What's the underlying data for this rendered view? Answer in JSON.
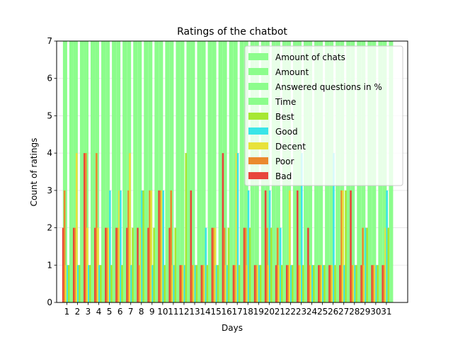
{
  "chart_data": {
    "type": "bar",
    "title": "Ratings of the chatbot",
    "xlabel": "Days",
    "ylabel": "Count of ratings",
    "ylim": [
      0,
      7
    ],
    "y_ticks": [
      0,
      1,
      2,
      3,
      4,
      5,
      6,
      7
    ],
    "grid": true,
    "legend_position": "top-right",
    "categories": [
      "1",
      "2",
      "3",
      "4",
      "5",
      "6",
      "7",
      "8",
      "9",
      "10",
      "11",
      "12",
      "13",
      "14",
      "15",
      "16",
      "17",
      "18",
      "19",
      "20",
      "21",
      "22",
      "23",
      "24",
      "25",
      "26",
      "27",
      "28",
      "29",
      "30",
      "31"
    ],
    "series": [
      {
        "name": "Bad",
        "color": "#e8453c",
        "values": [
          2,
          2,
          4,
          2,
          2,
          2,
          2,
          2,
          2,
          3,
          2,
          1,
          3,
          1,
          2,
          4,
          1,
          2,
          1,
          3,
          1,
          1,
          3,
          2,
          1,
          1,
          1,
          3,
          1,
          1,
          1
        ]
      },
      {
        "name": "Poor",
        "color": "#ea8a2e",
        "values": [
          3,
          2,
          4,
          4,
          2,
          2,
          3,
          1,
          3,
          3,
          3,
          1,
          1,
          1,
          2,
          2,
          1,
          2,
          1,
          2,
          2,
          1,
          1,
          1,
          1,
          1,
          3,
          1,
          2,
          1,
          1
        ]
      },
      {
        "name": "Decent",
        "color": "#e8e23a",
        "values": [
          1,
          4,
          2,
          2,
          2,
          3,
          4,
          2,
          3,
          3,
          1,
          1,
          1,
          1,
          2,
          1,
          4,
          1,
          1,
          1,
          1,
          3,
          1,
          1,
          1,
          1,
          3,
          1,
          1,
          1,
          2
        ]
      },
      {
        "name": "Good",
        "color": "#3ae5e8",
        "values": [
          1,
          1,
          1,
          1,
          3,
          3,
          1,
          3,
          1,
          3,
          1,
          1,
          1,
          2,
          1,
          1,
          4,
          3,
          1,
          3,
          2,
          1,
          4,
          1,
          1,
          4,
          1,
          1,
          2,
          1,
          3
        ]
      },
      {
        "name": "Best",
        "color": "#a6e832",
        "values": [
          1,
          1,
          1,
          1,
          1,
          1,
          2,
          3,
          2,
          1,
          2,
          4,
          1,
          1,
          1,
          2,
          1,
          2,
          1,
          2,
          1,
          1,
          1,
          1,
          1,
          1,
          3,
          1,
          2,
          1,
          2
        ]
      }
    ],
    "background_series": [
      {
        "name": "Amount of chats",
        "color": "#8cfd8c"
      },
      {
        "name": "Amount",
        "color": "#8cfd8c"
      },
      {
        "name": "Answered questions in %",
        "color": "#8cfd8c"
      },
      {
        "name": "Time",
        "color": "#8cfd8c"
      }
    ],
    "legend_order": [
      "Amount of chats",
      "Amount",
      "Answered questions in %",
      "Time",
      "Best",
      "Good",
      "Decent",
      "Poor",
      "Bad"
    ]
  }
}
